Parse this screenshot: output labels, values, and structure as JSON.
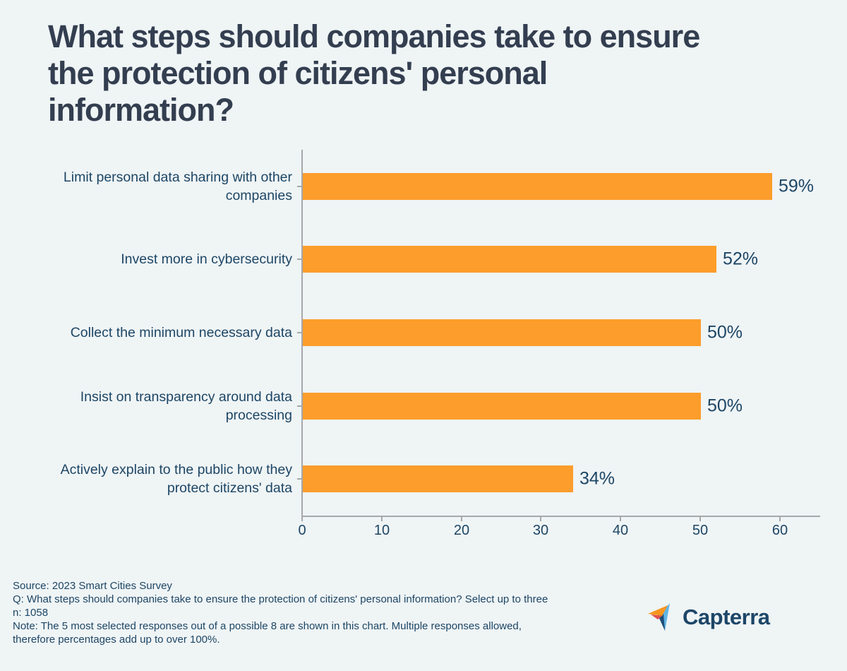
{
  "title": "What steps should companies take to ensure the protection of citizens' personal information?",
  "title_lines": [
    "What steps should companies take to ensure",
    "the protection of citizens' personal",
    "information?"
  ],
  "chart_data": {
    "type": "bar",
    "orientation": "horizontal",
    "title": "What steps should companies take to ensure the protection of citizens' personal information?",
    "categories": [
      "Limit personal data sharing with other companies",
      "Invest more in cybersecurity",
      "Collect the minimum necessary data",
      "Insist on transparency around data processing",
      "Actively explain to the public how they protect citizens' data"
    ],
    "category_label_lines": [
      [
        "Limit personal data sharing with other",
        "companies"
      ],
      [
        "Invest more in cybersecurity"
      ],
      [
        "Collect the minimum necessary data"
      ],
      [
        "Insist on transparency around data",
        "processing"
      ],
      [
        "Actively explain to the public how they",
        "protect citizens' data"
      ]
    ],
    "values": [
      59,
      52,
      50,
      50,
      34
    ],
    "value_labels": [
      "59%",
      "52%",
      "50%",
      "50%",
      "34%"
    ],
    "xlim": [
      0,
      65
    ],
    "x_ticks": [
      0,
      10,
      20,
      30,
      40,
      50,
      60
    ],
    "x_tick_labels": [
      "0",
      "10",
      "20",
      "30",
      "40",
      "50",
      "60"
    ],
    "xlabel": "",
    "ylabel": "",
    "grid": false,
    "legend": null,
    "bar_color": "#FC9D2C"
  },
  "footer": {
    "lines": [
      "Source: 2023 Smart Cities Survey",
      "Q: What steps should companies take to ensure the protection of citizens' personal information? Select up to three",
      "n: 1058",
      "Note: The 5 most selected responses out of a possible 8 are shown in this chart. Multiple responses allowed,",
      "therefore percentages add up to over 100%."
    ]
  },
  "logo": {
    "text": "Capterra",
    "icon": "capterra-arrow-icon"
  },
  "colors": {
    "background": "#EFF4F5",
    "bar_orange": "#FC9D2C",
    "axis_gray": "#A6A8AA",
    "text_navy": "#1D4665",
    "title_slate": "#333E50",
    "logo_navy": "#1D4668",
    "logo_skyblue": "#62B5E5",
    "logo_orange": "#F7961F",
    "logo_red": "#E34F4F",
    "logo_darkblue": "#1E4E79"
  }
}
